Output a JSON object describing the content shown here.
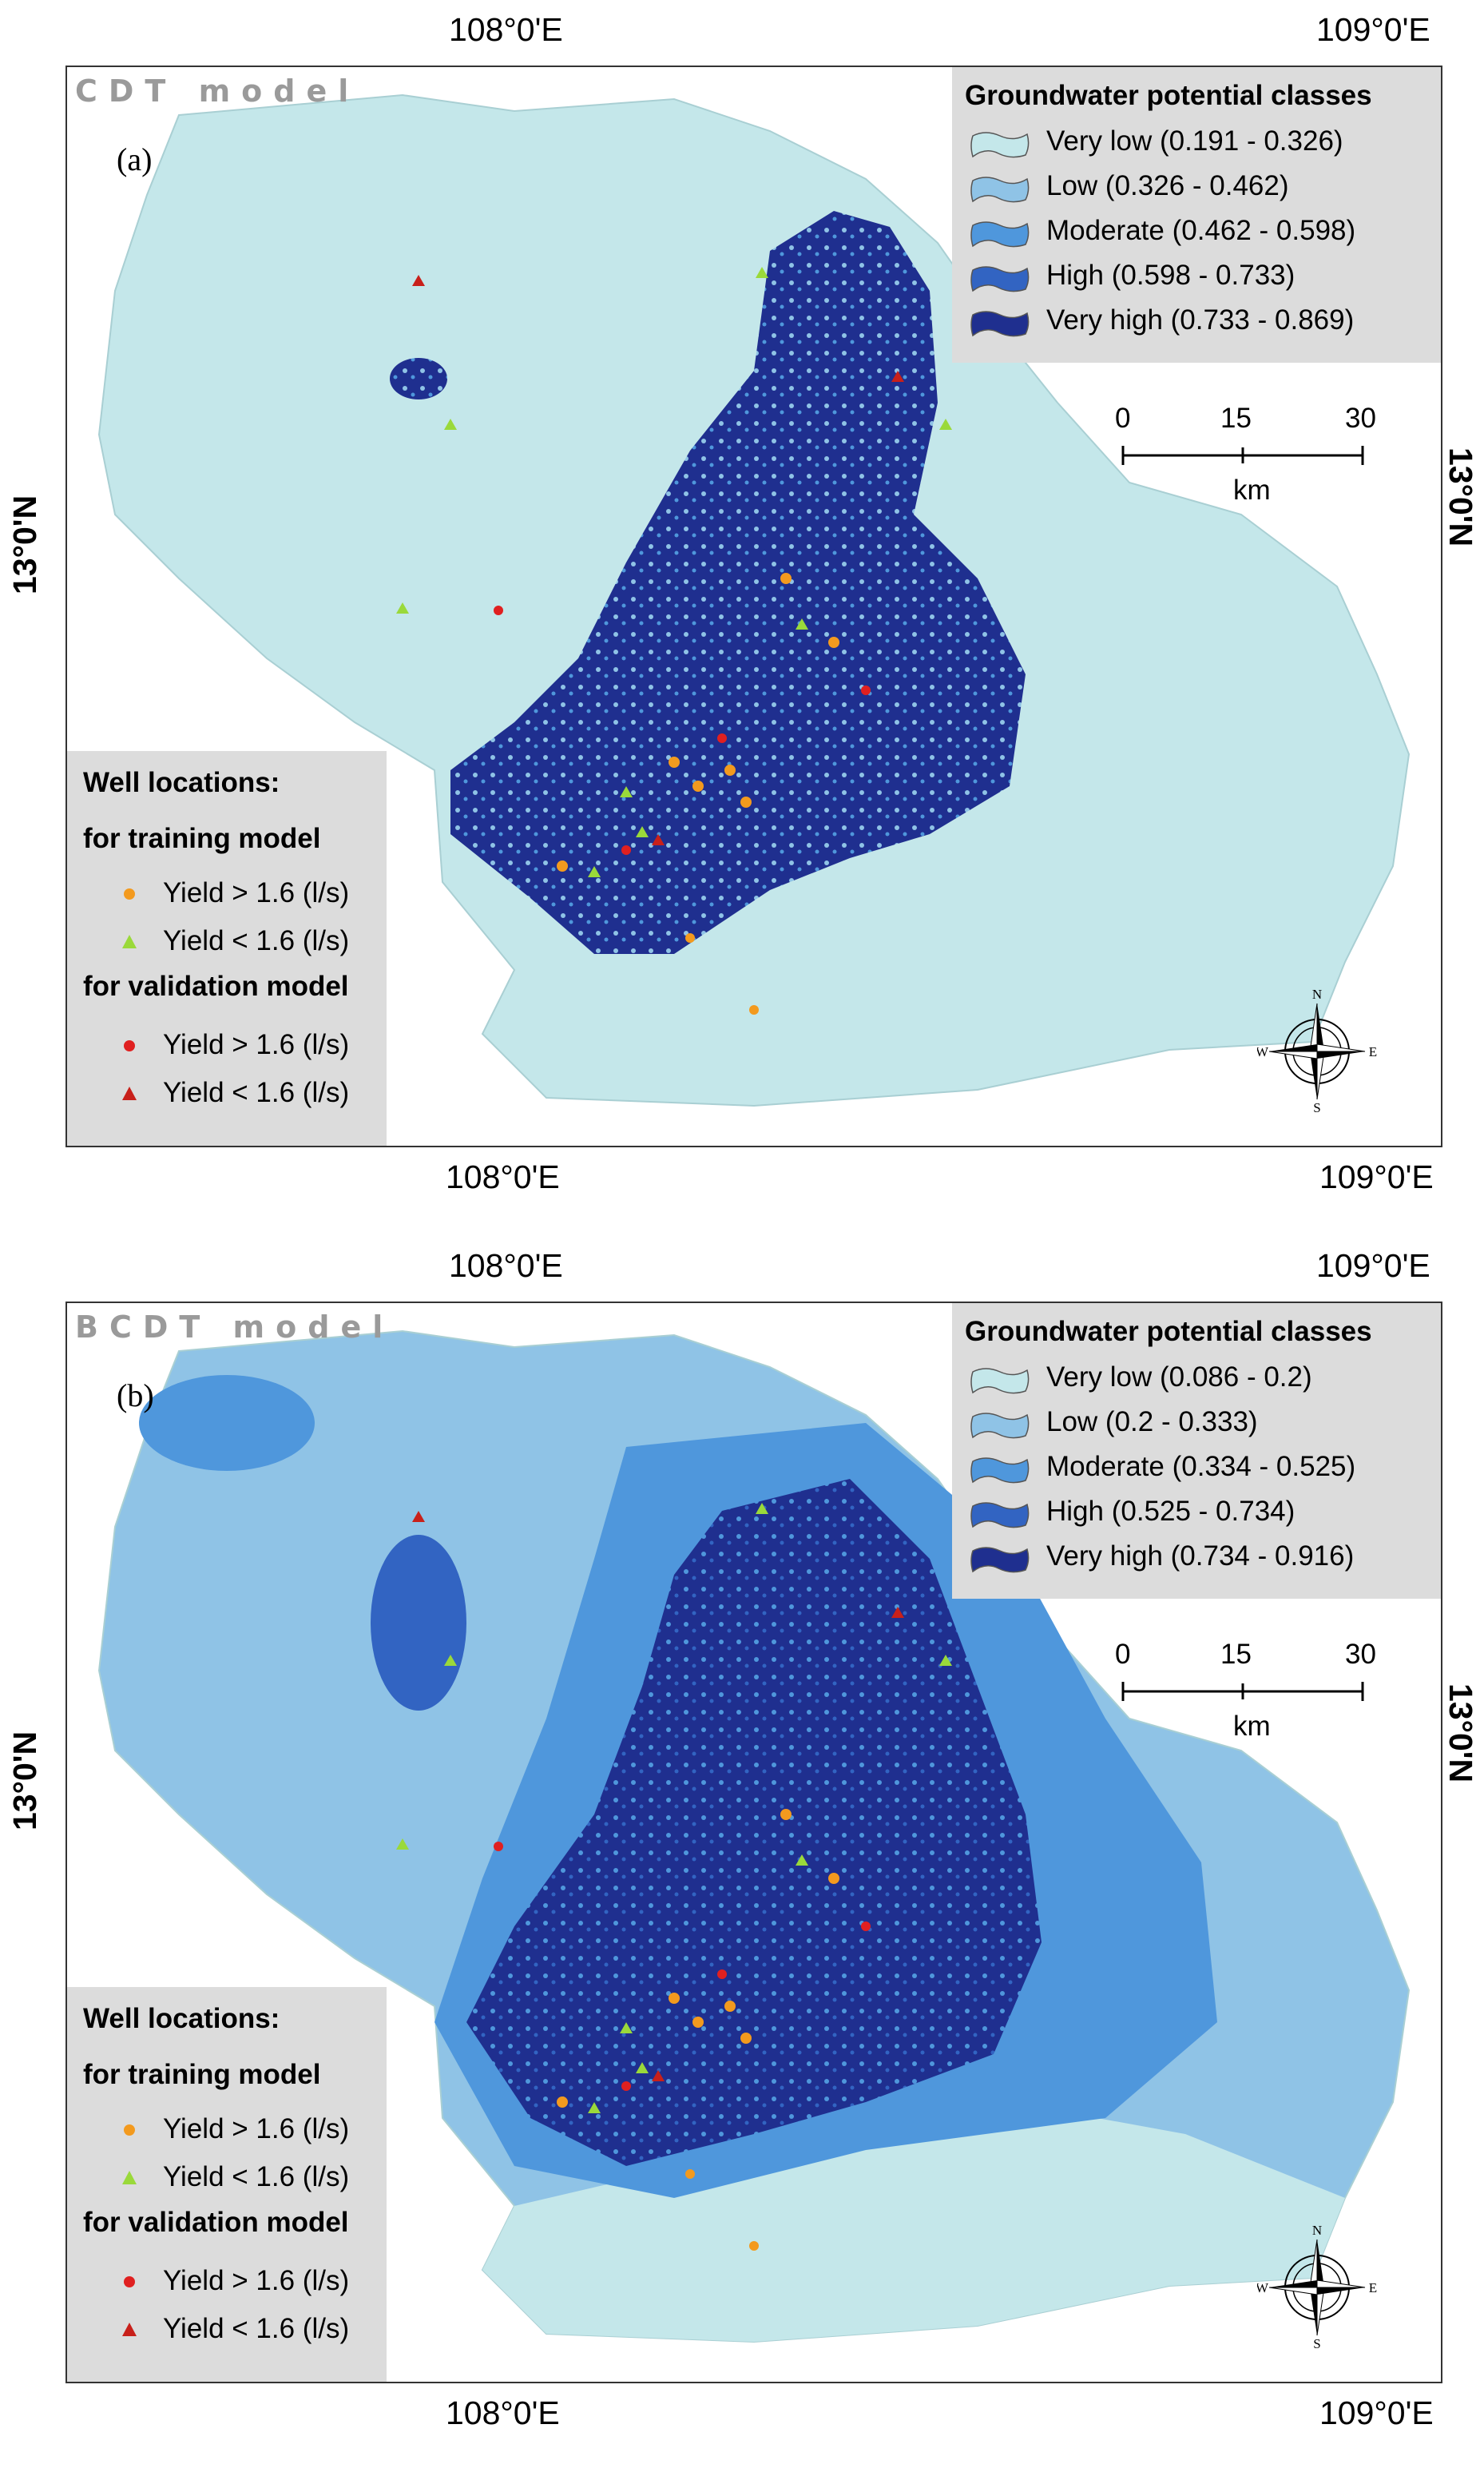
{
  "panels": [
    {
      "id": "a",
      "model_title": "CDT model",
      "panel_label": "(a)",
      "legend": {
        "title": "Groundwater potential classes",
        "classes": [
          {
            "label": "Very low (0.191 - 0.326)",
            "color": "#c4e7ea"
          },
          {
            "label": "Low (0.326 - 0.462)",
            "color": "#8fc3e6"
          },
          {
            "label": "Moderate (0.462 - 0.598)",
            "color": "#4f97dc"
          },
          {
            "label": "High (0.598 - 0.733)",
            "color": "#3264c2"
          },
          {
            "label": "Very high (0.733 - 0.869)",
            "color": "#1f2f8f"
          }
        ]
      }
    },
    {
      "id": "b",
      "model_title": "BCDT model",
      "panel_label": "(b)",
      "legend": {
        "title": "Groundwater potential classes",
        "classes": [
          {
            "label": "Very low (0.086 - 0.2)",
            "color": "#c4e7ea"
          },
          {
            "label": "Low (0.2 - 0.333)",
            "color": "#8fc3e6"
          },
          {
            "label": "Moderate (0.334 - 0.525)",
            "color": "#4f97dc"
          },
          {
            "label": "High (0.525 - 0.734)",
            "color": "#3264c2"
          },
          {
            "label": "Very high (0.734 - 0.916)",
            "color": "#1f2f8f"
          }
        ]
      }
    }
  ],
  "coordinates": {
    "lon_left": "108°0'E",
    "lon_right": "109°0'E",
    "lat": "13°0'N"
  },
  "wells_legend": {
    "title": "Well locations:",
    "training_heading": "for training model",
    "validation_heading": "for validation model",
    "items": [
      {
        "label": "Yield > 1.6 (l/s)",
        "symbol": "circle",
        "color": "#f39a1e"
      },
      {
        "label": "Yield < 1.6 (l/s)",
        "symbol": "triangle",
        "color": "#9ad93a"
      },
      {
        "label": "Yield > 1.6 (l/s)",
        "symbol": "circle",
        "color": "#e02020"
      },
      {
        "label": "Yield < 1.6 (l/s)",
        "symbol": "triangle",
        "color": "#c8201a"
      }
    ]
  },
  "scale_bar": {
    "ticks": [
      "0",
      "15",
      "30"
    ],
    "unit": "km"
  },
  "compass": {
    "n": "N",
    "s": "S",
    "e": "E",
    "w": "W"
  }
}
